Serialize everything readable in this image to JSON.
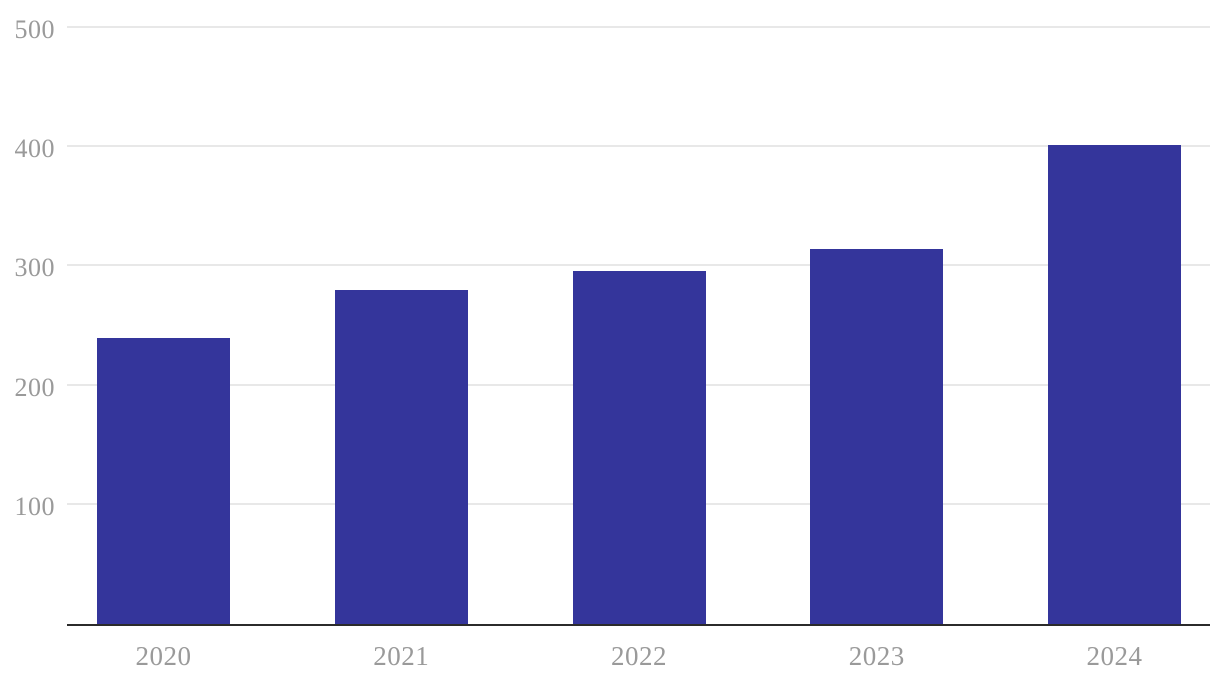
{
  "chart_data": {
    "type": "bar",
    "categories": [
      "2020",
      "2021",
      "2022",
      "2023",
      "2024"
    ],
    "values": [
      240,
      280,
      296,
      315,
      402
    ],
    "title": "",
    "xlabel": "",
    "ylabel": "",
    "ylim": [
      0,
      500
    ],
    "yticks": [
      100,
      200,
      300,
      400,
      500
    ],
    "grid": true,
    "legend_position": "none",
    "colors": {
      "bar": "#34359B",
      "gridline": "#E8E8E8",
      "axis_line": "#2B2B2B",
      "tick_label": "#9A9A9A",
      "background": "#FFFFFF"
    }
  }
}
